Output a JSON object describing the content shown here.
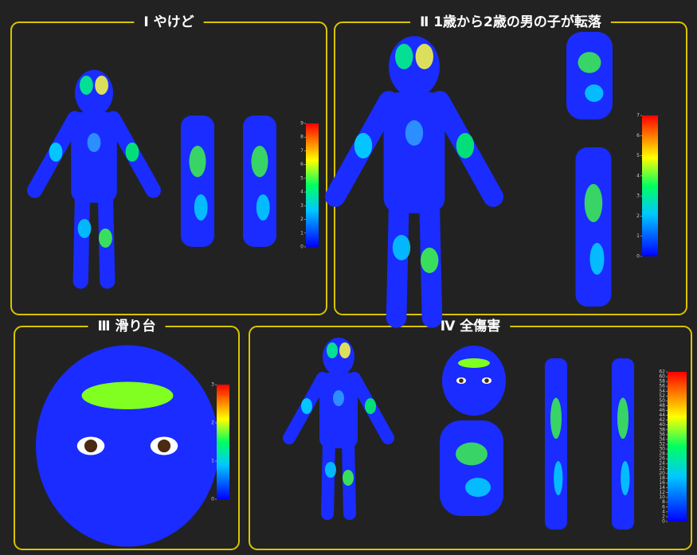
{
  "panels": [
    {
      "title": "Ⅰ やけど",
      "scale": {
        "lim": [
          0,
          9
        ],
        "ticks": [
          0,
          1,
          2,
          3,
          4,
          5,
          6,
          7,
          8,
          9
        ]
      }
    },
    {
      "title": "Ⅱ 1歳から2歳の男の子が転落",
      "scale": {
        "lim": [
          0,
          7
        ],
        "ticks": [
          0,
          1,
          2,
          3,
          4,
          5,
          6,
          7
        ]
      }
    },
    {
      "title": "Ⅲ 滑り台",
      "scale": {
        "lim": [
          0,
          3
        ],
        "ticks": [
          0,
          1,
          2,
          3
        ]
      }
    },
    {
      "title": "Ⅳ 全傷害",
      "scale": {
        "lim": [
          0,
          62
        ],
        "ticks": [
          0,
          2,
          4,
          6,
          8,
          10,
          12,
          14,
          16,
          18,
          20,
          22,
          24,
          26,
          28,
          30,
          32,
          34,
          36,
          38,
          40,
          42,
          44,
          46,
          48,
          50,
          52,
          54,
          56,
          58,
          60,
          62
        ]
      }
    }
  ]
}
